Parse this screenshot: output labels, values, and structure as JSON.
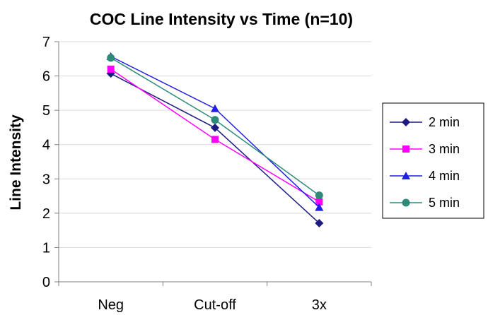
{
  "chart_data": {
    "type": "line",
    "title": "COC Line Intensity vs Time (n=10)",
    "xlabel": "",
    "ylabel": "Line Intensity",
    "categories": [
      "Neg",
      "Cut-off",
      "3x"
    ],
    "ylim": [
      0,
      7
    ],
    "yticks": [
      "0",
      "1",
      "2",
      "3",
      "4",
      "5",
      "6",
      "7"
    ],
    "grid": true,
    "legend_position": "right",
    "series": [
      {
        "name": "2 min",
        "values": [
          6.07,
          4.49,
          1.71
        ],
        "color": "#1c1c80",
        "marker": "diamond"
      },
      {
        "name": "3 min",
        "values": [
          6.2,
          4.15,
          2.33
        ],
        "color": "#ff00ff",
        "marker": "square"
      },
      {
        "name": "4 min",
        "values": [
          6.57,
          5.05,
          2.17
        ],
        "color": "#1f1fe6",
        "marker": "triangle"
      },
      {
        "name": "5 min",
        "values": [
          6.53,
          4.72,
          2.52
        ],
        "color": "#2e8b7a",
        "marker": "circle"
      }
    ]
  }
}
